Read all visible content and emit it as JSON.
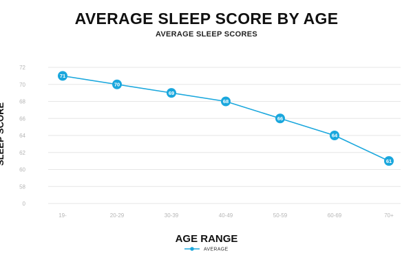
{
  "chart_data": {
    "type": "line",
    "title": "AVERAGE SLEEP SCORE BY AGE",
    "subtitle": "AVERAGE SLEEP SCORES",
    "xlabel": "AGE RANGE",
    "ylabel": "SLEEP SCORE",
    "categories": [
      "19-",
      "20-29",
      "30-39",
      "40-49",
      "50-59",
      "60-69",
      "70+"
    ],
    "series": [
      {
        "name": "AVERAGE",
        "values": [
          71,
          70,
          69,
          68,
          66,
          64,
          61
        ],
        "color": "#1aa7dd"
      }
    ],
    "y_ticks": [
      "72",
      "70",
      "68",
      "66",
      "64",
      "62",
      "60",
      "58",
      "0"
    ],
    "grid": true,
    "legend_position": "bottom-center"
  }
}
